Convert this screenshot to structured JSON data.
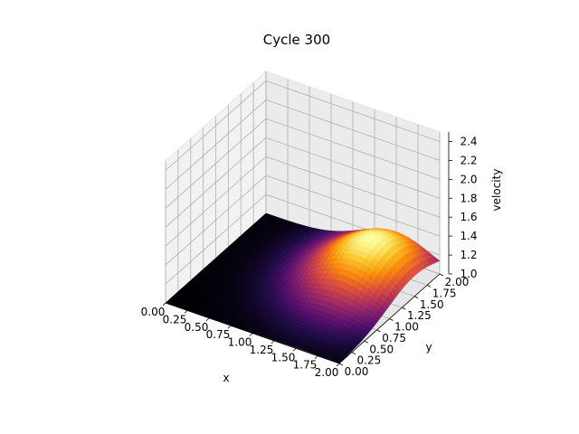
{
  "chart_data": {
    "type": "surface",
    "title": "Cycle 300",
    "xlabel": "x",
    "ylabel": "y",
    "zlabel": "velocity",
    "xlim": [
      0,
      2
    ],
    "ylim": [
      0,
      2
    ],
    "zlim": [
      1.0,
      2.5
    ],
    "x_ticks": [
      "0.00",
      "0.25",
      "0.50",
      "0.75",
      "1.00",
      "1.25",
      "1.50",
      "1.75",
      "2.00"
    ],
    "y_ticks": [
      "0.00",
      "0.25",
      "0.50",
      "0.75",
      "1.00",
      "1.25",
      "1.50",
      "1.75",
      "2.00"
    ],
    "z_ticks": [
      "1.0",
      "1.2",
      "1.4",
      "1.6",
      "1.8",
      "2.0",
      "2.2",
      "2.4"
    ],
    "colormap": "inferno",
    "surface": {
      "baseline": 1.0,
      "peak_value": 1.45,
      "peak_x": 1.5,
      "peak_y": 1.5,
      "description_free_params": true
    },
    "grid": true,
    "pane_color": "#f2f2f2"
  }
}
